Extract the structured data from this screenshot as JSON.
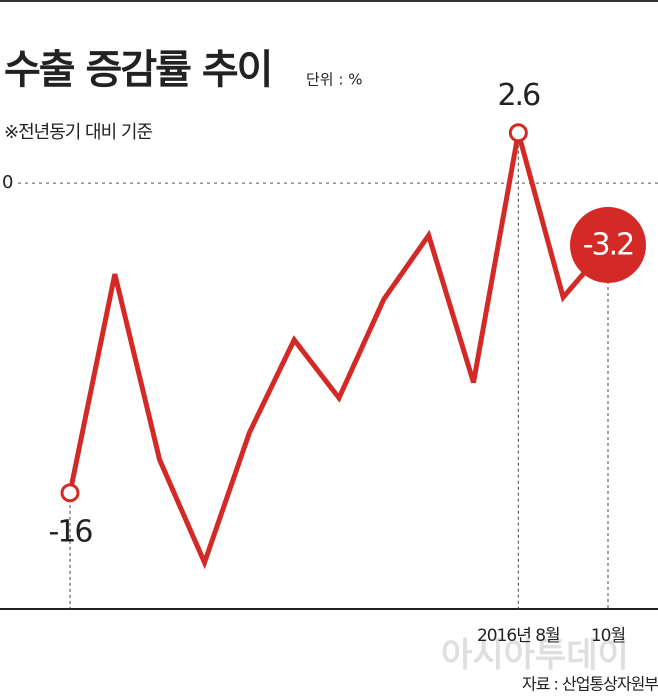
{
  "chart_data": {
    "type": "line",
    "title": "수출 증감률 추이",
    "unit": "단위 : %",
    "subtitle": "※전년동기 대비 기준",
    "source": "자료 : 산업통상자원부",
    "watermark": "아시아투데이",
    "categories": [
      null,
      null,
      null,
      null,
      null,
      null,
      null,
      null,
      null,
      null,
      "2016년 8월",
      null,
      "10월"
    ],
    "series": [
      {
        "name": "수출 증감률",
        "color": "#d42a27",
        "values": [
          -16,
          -4.7,
          -14.3,
          -19.6,
          -12.9,
          -8.1,
          -11.1,
          -6.0,
          -2.7,
          -10.3,
          2.6,
          -5.9,
          -3.2
        ],
        "value_labels": [
          "-16",
          null,
          null,
          null,
          null,
          null,
          null,
          null,
          null,
          null,
          "2.6",
          null,
          "-3.2"
        ]
      }
    ],
    "ylim": [
      -22,
      3
    ],
    "yticks": [
      0
    ],
    "grid": true
  }
}
